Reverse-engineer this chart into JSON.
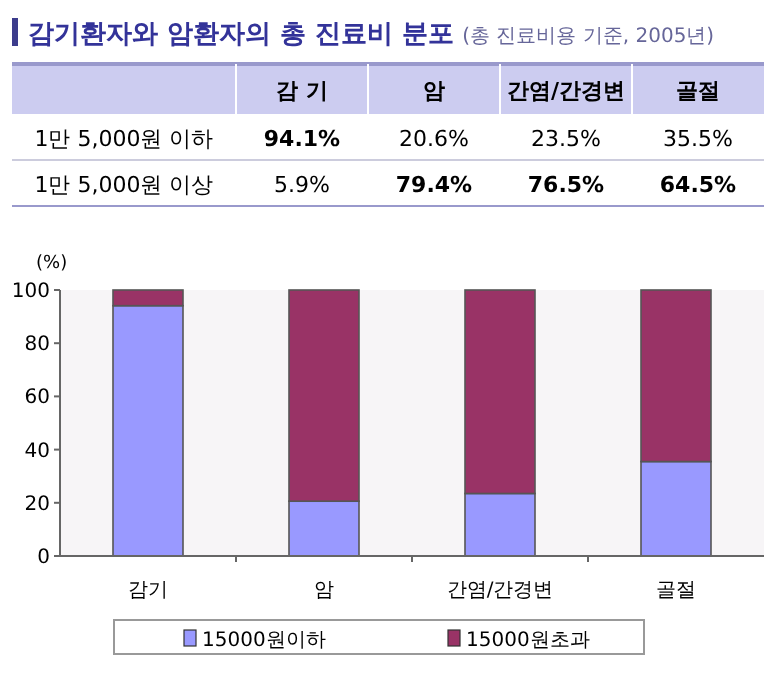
{
  "chart_data": [
    {
      "type": "heatmap",
      "title": "감기환자와 암환자의 총 진료비 분포",
      "subtitle": "(총 진료비용 기준, 2005년)",
      "categories": [
        "감 기",
        "암",
        "간염/간경변",
        "골절"
      ],
      "y_categories": [
        "1만 5,000원 이하",
        "1만 5,000원 이상"
      ],
      "cells": [
        [
          94.1,
          20.6,
          23.5,
          35.5
        ],
        [
          5.9,
          79.4,
          76.5,
          64.5
        ]
      ],
      "cell_labels": [
        [
          "94.1%",
          "20.6%",
          "23.5%",
          "35.5%"
        ],
        [
          "5.9%",
          "79.4%",
          "76.5%",
          "64.5%"
        ]
      ]
    },
    {
      "type": "bar",
      "stacked": true,
      "ylabel": "(%)",
      "categories": [
        "감기",
        "암",
        "간염/간경변",
        "골절"
      ],
      "series": [
        {
          "name": "15000원이하",
          "color": "#9999ff",
          "values": [
            94.1,
            20.6,
            23.5,
            35.5
          ]
        },
        {
          "name": "15000원초과",
          "color": "#993366",
          "values": [
            5.9,
            79.4,
            76.5,
            64.5
          ]
        }
      ],
      "ylim": [
        0,
        100
      ],
      "yticks": [
        0,
        20,
        40,
        60,
        80,
        100
      ],
      "grid": false,
      "legend": "bottom"
    }
  ]
}
